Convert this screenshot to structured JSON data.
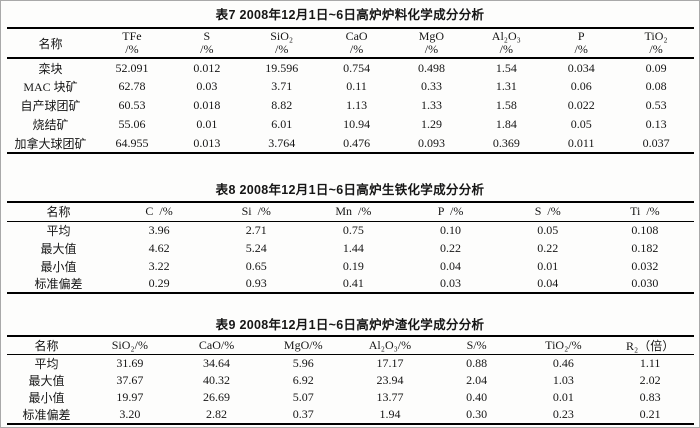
{
  "page": {
    "background": "#fdfdfc",
    "frame_border": "#a9a9a9",
    "rule_color": "#000000",
    "text_color": "#151515"
  },
  "table7": {
    "title": "表7  2008年12月1日~6日高炉炉料化学成分分析",
    "name_header": "名称",
    "headers": [
      {
        "symbol": "TFe",
        "unit": "/%"
      },
      {
        "symbol": "S",
        "unit": "/%"
      },
      {
        "symbol": "SiO₂",
        "unit": "/%"
      },
      {
        "symbol": "CaO",
        "unit": "/%"
      },
      {
        "symbol": "MgO",
        "unit": "/%"
      },
      {
        "symbol": "Al₂O₃",
        "unit": "/%"
      },
      {
        "symbol": "P",
        "unit": "/%"
      },
      {
        "symbol": "TiO₂",
        "unit": "/%"
      }
    ],
    "rows": [
      {
        "name": "栾块",
        "values": [
          "52.091",
          "0.012",
          "19.596",
          "0.754",
          "0.498",
          "1.54",
          "0.034",
          "0.09"
        ]
      },
      {
        "name": "MAC 块矿",
        "values": [
          "62.78",
          "0.03",
          "3.71",
          "0.11",
          "0.33",
          "1.31",
          "0.06",
          "0.08"
        ]
      },
      {
        "name": "自产球团矿",
        "values": [
          "60.53",
          "0.018",
          "8.82",
          "1.13",
          "1.33",
          "1.58",
          "0.022",
          "0.53"
        ]
      },
      {
        "name": "烧结矿",
        "values": [
          "55.06",
          "0.01",
          "6.01",
          "10.94",
          "1.29",
          "1.84",
          "0.05",
          "0.13"
        ]
      },
      {
        "name": "加拿大球团矿",
        "values": [
          "64.955",
          "0.013",
          "3.764",
          "0.476",
          "0.093",
          "0.369",
          "0.011",
          "0.037"
        ]
      }
    ]
  },
  "table8": {
    "title": "表8  2008年12月1日~6日高炉生铁化学成分分析",
    "name_header": "名称",
    "headers": [
      "C  /%",
      "Si  /%",
      "Mn  /%",
      "P  /%",
      "S  /%",
      "Ti  /%"
    ],
    "rows": [
      {
        "name": "平均",
        "values": [
          "3.96",
          "2.71",
          "0.75",
          "0.10",
          "0.05",
          "0.108"
        ]
      },
      {
        "name": "最大值",
        "values": [
          "4.62",
          "5.24",
          "1.44",
          "0.22",
          "0.22",
          "0.182"
        ]
      },
      {
        "name": "最小值",
        "values": [
          "3.22",
          "0.65",
          "0.19",
          "0.04",
          "0.01",
          "0.032"
        ]
      },
      {
        "name": "标准偏差",
        "values": [
          "0.29",
          "0.93",
          "0.41",
          "0.03",
          "0.04",
          "0.030"
        ]
      }
    ]
  },
  "table9": {
    "title": "表9  2008年12月1日~6日高炉炉渣化学成分分析",
    "name_header": "名称",
    "headers": [
      "SiO₂/%",
      "CaO/%",
      "MgO/%",
      "Al₂O₃/%",
      "S/%",
      "TiO₂/%",
      "R₂（倍）"
    ],
    "rows": [
      {
        "name": "平均",
        "values": [
          "31.69",
          "34.64",
          "5.96",
          "17.17",
          "0.88",
          "0.46",
          "1.11"
        ]
      },
      {
        "name": "最大值",
        "values": [
          "37.67",
          "40.32",
          "6.92",
          "23.94",
          "2.04",
          "1.03",
          "2.02"
        ]
      },
      {
        "name": "最小值",
        "values": [
          "19.97",
          "26.69",
          "5.07",
          "13.77",
          "0.40",
          "0.01",
          "0.83"
        ]
      },
      {
        "name": "标准偏差",
        "values": [
          "3.20",
          "2.82",
          "0.37",
          "1.94",
          "0.30",
          "0.23",
          "0.21"
        ]
      }
    ]
  }
}
